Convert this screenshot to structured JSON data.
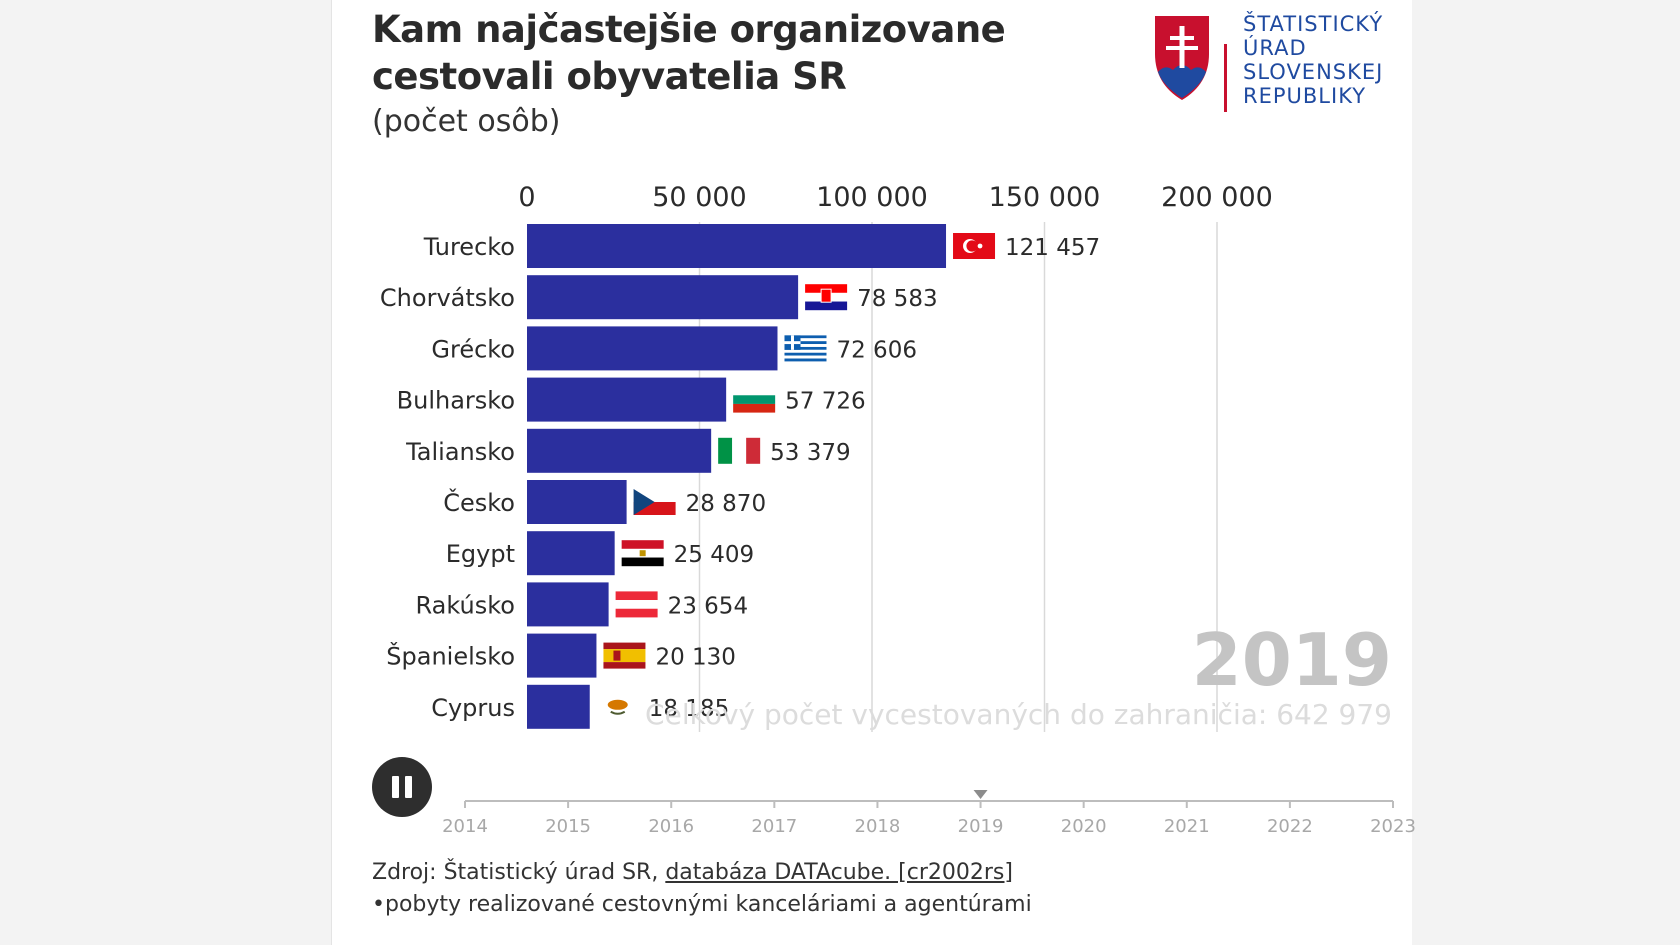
{
  "header": {
    "title": "Kam najčastejšie organizovane cestovali obyvatelia SR",
    "subtitle": "(počet osôb)"
  },
  "logo": {
    "lines": [
      "ŠTATISTICKÝ",
      "ÚRAD",
      "SLOVENSKEJ",
      "REPUBLIKY"
    ],
    "icon": "slovak-coat-of-arms-icon"
  },
  "chart_data": {
    "type": "bar",
    "orientation": "horizontal",
    "categories": [
      "Turecko",
      "Chorvátsko",
      "Grécko",
      "Bulharsko",
      "Taliansko",
      "Česko",
      "Egypt",
      "Rakúsko",
      "Španielsko",
      "Cyprus"
    ],
    "values": [
      121457,
      78583,
      72606,
      57726,
      53379,
      28870,
      25409,
      23654,
      20130,
      18185
    ],
    "value_labels": [
      "121 457",
      "78 583",
      "72 606",
      "57 726",
      "53 379",
      "28 870",
      "25 409",
      "23 654",
      "20 130",
      "18 185"
    ],
    "flags": [
      "turkey-flag-icon",
      "croatia-flag-icon",
      "greece-flag-icon",
      "bulgaria-flag-icon",
      "italy-flag-icon",
      "czechia-flag-icon",
      "egypt-flag-icon",
      "austria-flag-icon",
      "spain-flag-icon",
      "cyprus-flag-icon"
    ],
    "xlim": [
      0,
      200000
    ],
    "x_ticks": [
      0,
      50000,
      100000,
      150000,
      200000
    ],
    "x_tick_labels": [
      "0",
      "50 000",
      "100 000",
      "150 000",
      "200 000"
    ],
    "axis_position": "top",
    "grid": true,
    "bar_color": "#2b2f9e"
  },
  "overlay": {
    "year": "2019",
    "total_text": "Celkový počet vycestovaných do zahraničia: 642 979"
  },
  "timeline": {
    "years": [
      "2014",
      "2015",
      "2016",
      "2017",
      "2018",
      "2019",
      "2020",
      "2021",
      "2022",
      "2023"
    ],
    "current": "2019",
    "pause_icon": "pause-icon"
  },
  "footer": {
    "source_prefix": "Zdroj: Štatistický úrad SR, ",
    "source_link": "databáza DATAcube. [cr2002rs]",
    "note": "•pobyty realizované cestovnými kanceláriami a agentúrami"
  }
}
